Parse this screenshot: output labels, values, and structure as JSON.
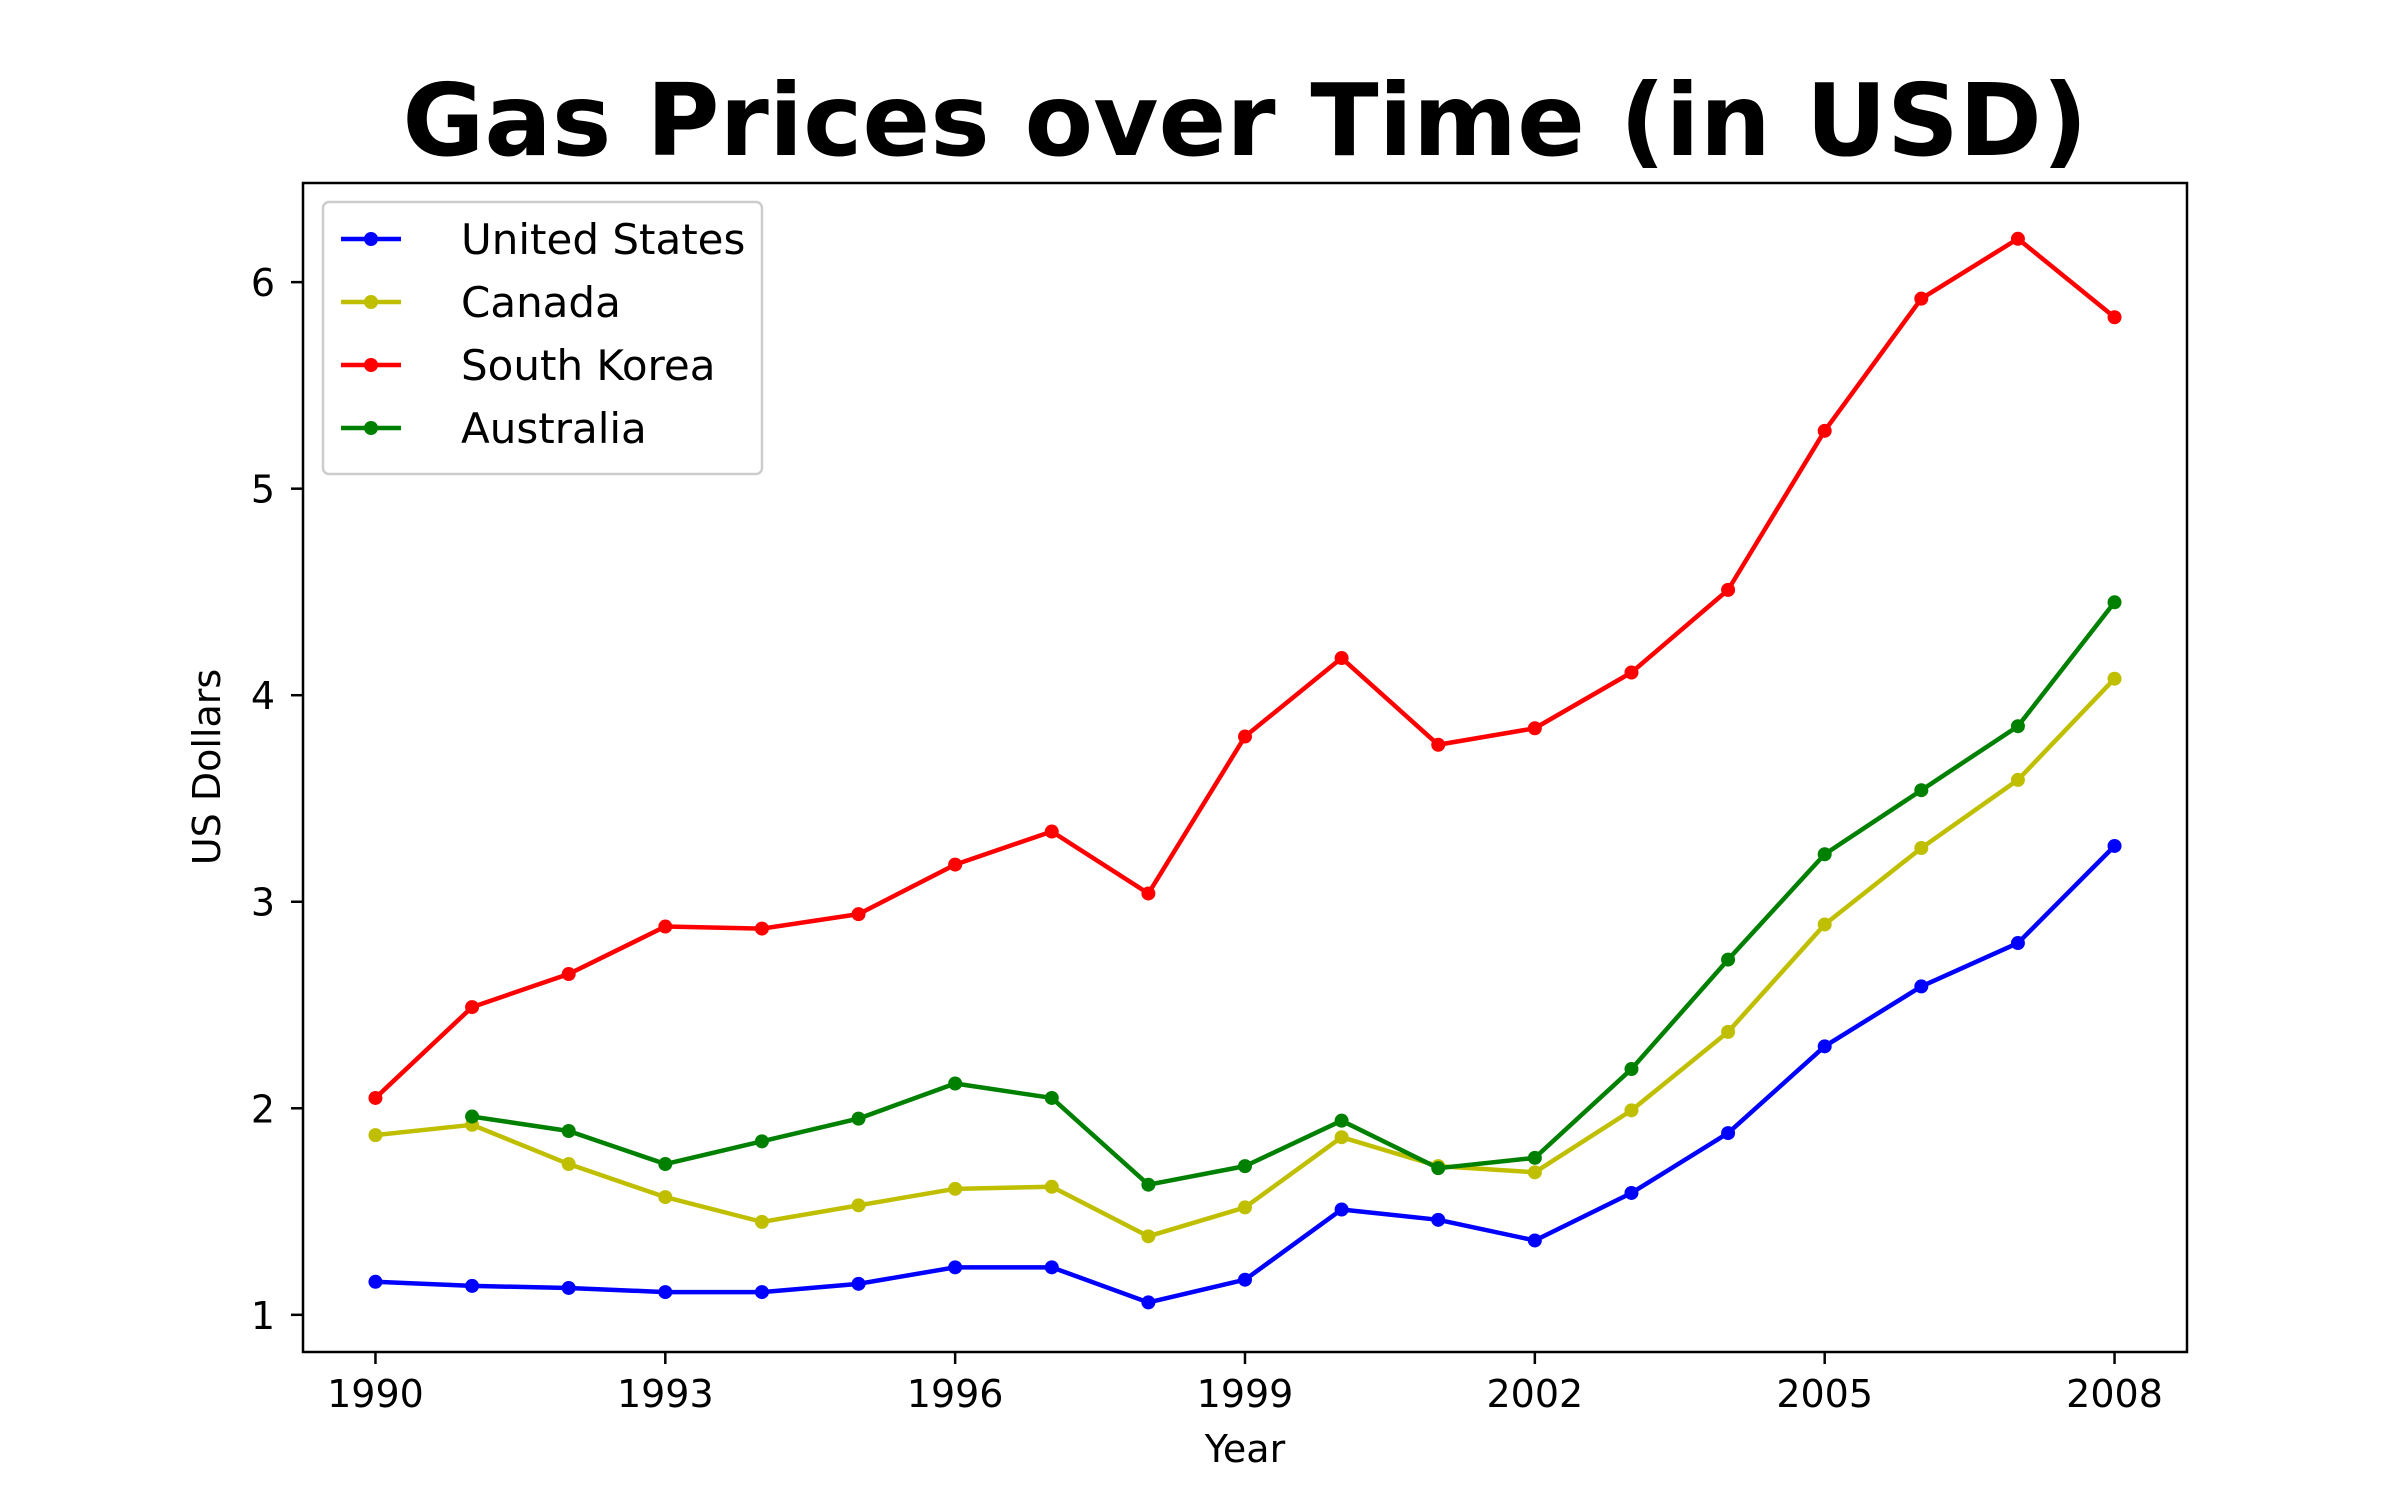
{
  "chart_data": {
    "type": "line",
    "title": "Gas Prices over Time (in USD)",
    "xlabel": "Year",
    "ylabel": "US Dollars",
    "xlim": [
      1989.25,
      2008.75
    ],
    "ylim": [
      0.82,
      6.48
    ],
    "xticks": [
      1990,
      1993,
      1996,
      1999,
      2002,
      2005,
      2008
    ],
    "yticks": [
      1,
      2,
      3,
      4,
      5,
      6
    ],
    "grid": false,
    "legend_position": "top-left",
    "series": [
      {
        "name": "United States",
        "color": "#0000ff",
        "x": [
          1990,
          1991,
          1992,
          1993,
          1994,
          1995,
          1996,
          1997,
          1998,
          1999,
          2000,
          2001,
          2002,
          2003,
          2004,
          2005,
          2006,
          2007,
          2008
        ],
        "values": [
          1.16,
          1.14,
          1.13,
          1.11,
          1.11,
          1.15,
          1.23,
          1.23,
          1.06,
          1.17,
          1.51,
          1.46,
          1.36,
          1.59,
          1.88,
          2.3,
          2.59,
          2.8,
          3.27
        ]
      },
      {
        "name": "Canada",
        "color": "#bfbf00",
        "x": [
          1990,
          1991,
          1992,
          1993,
          1994,
          1995,
          1996,
          1997,
          1998,
          1999,
          2000,
          2001,
          2002,
          2003,
          2004,
          2005,
          2006,
          2007,
          2008
        ],
        "values": [
          1.87,
          1.92,
          1.73,
          1.57,
          1.45,
          1.53,
          1.61,
          1.62,
          1.38,
          1.52,
          1.86,
          1.72,
          1.69,
          1.99,
          2.37,
          2.89,
          3.26,
          3.59,
          4.08
        ]
      },
      {
        "name": "South Korea",
        "color": "#ff0000",
        "x": [
          1990,
          1991,
          1992,
          1993,
          1994,
          1995,
          1996,
          1997,
          1998,
          1999,
          2000,
          2001,
          2002,
          2003,
          2004,
          2005,
          2006,
          2007,
          2008
        ],
        "values": [
          2.05,
          2.49,
          2.65,
          2.88,
          2.87,
          2.94,
          3.18,
          3.34,
          3.04,
          3.8,
          4.18,
          3.76,
          3.84,
          4.11,
          4.51,
          5.28,
          5.92,
          6.21,
          5.83
        ]
      },
      {
        "name": "Australia",
        "color": "#008000",
        "x": [
          1991,
          1992,
          1993,
          1994,
          1995,
          1996,
          1997,
          1998,
          1999,
          2000,
          2001,
          2002,
          2003,
          2004,
          2005,
          2006,
          2007,
          2008
        ],
        "values": [
          1.96,
          1.89,
          1.73,
          1.84,
          1.95,
          2.12,
          2.05,
          1.63,
          1.72,
          1.94,
          1.71,
          1.76,
          2.19,
          2.72,
          3.23,
          3.54,
          3.85,
          4.45
        ]
      }
    ]
  }
}
